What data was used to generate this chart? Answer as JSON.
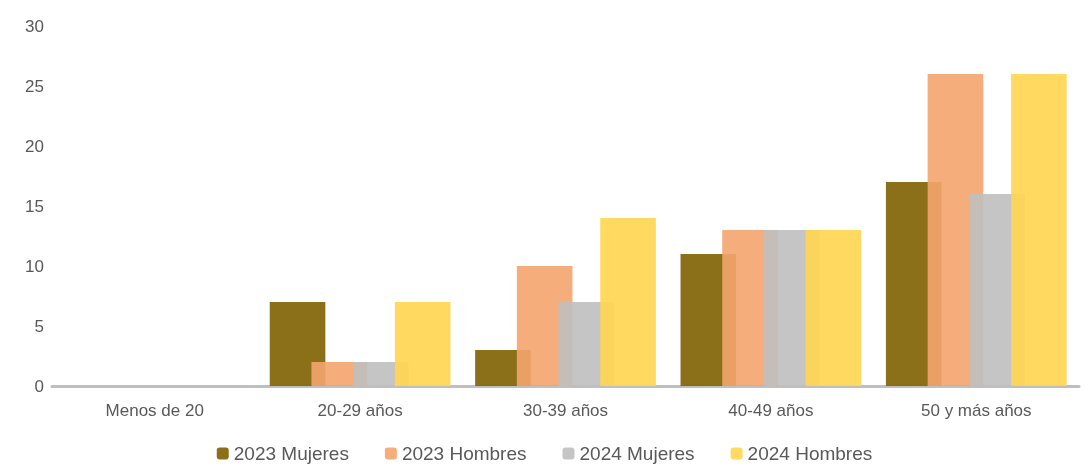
{
  "chart_data": {
    "type": "bar",
    "categories": [
      "Menos de 20",
      "20-29 años",
      "30-39 años",
      "40-49 años",
      "50 y más años"
    ],
    "series": [
      {
        "name": "2023 Mujeres",
        "color": "#7f6000",
        "values": [
          0,
          7,
          3,
          11,
          17
        ]
      },
      {
        "name": "2023 Hombres",
        "color": "#f4a46e",
        "values": [
          0,
          2,
          10,
          13,
          26
        ]
      },
      {
        "name": "2024 Mujeres",
        "color": "#bfbfbf",
        "values": [
          0,
          2,
          7,
          13,
          16
        ]
      },
      {
        "name": "2024 Hombres",
        "color": "#ffd54f",
        "values": [
          0,
          7,
          14,
          13,
          26
        ]
      }
    ],
    "ylim": [
      0,
      30
    ],
    "yticks": [
      0,
      5,
      10,
      15,
      20,
      25,
      30
    ],
    "grid": false,
    "legend": "bottom"
  }
}
